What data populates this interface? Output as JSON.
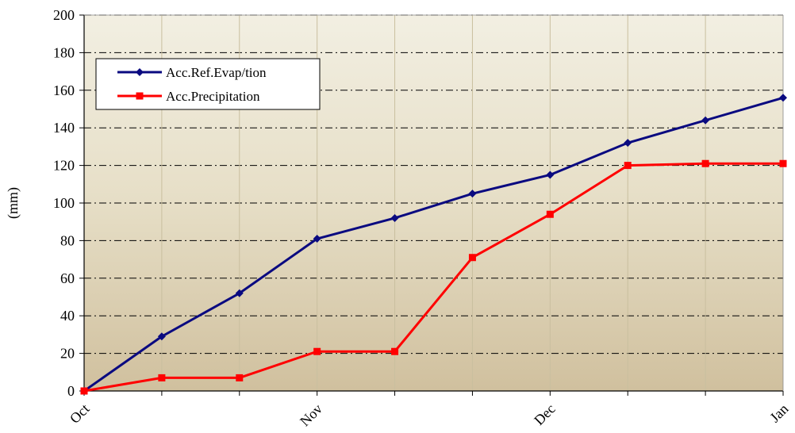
{
  "chart_data": {
    "type": "line",
    "xlabel": "",
    "ylabel": "(mm)",
    "ylim": [
      0,
      200
    ],
    "yticks": [
      0,
      20,
      40,
      60,
      80,
      100,
      120,
      140,
      160,
      180,
      200
    ],
    "x": [
      0,
      1,
      2,
      3,
      4,
      5,
      6,
      7,
      8,
      9
    ],
    "xlim": [
      0,
      9
    ],
    "xtick_labels": [
      {
        "x": 0,
        "label": "Oct"
      },
      {
        "x": 3,
        "label": "Nov"
      },
      {
        "x": 6,
        "label": "Dec"
      },
      {
        "x": 9,
        "label": "Jan"
      }
    ],
    "grid": true,
    "legend_position": "top-left",
    "series": [
      {
        "name": "Acc.Ref.Evap/tion",
        "color": "#0a0a80",
        "marker": "diamond",
        "values": [
          0,
          29,
          52,
          81,
          92,
          105,
          115,
          132,
          144,
          156
        ]
      },
      {
        "name": "Acc.Precipitation",
        "color": "#ff0000",
        "marker": "square",
        "values": [
          0,
          7,
          7,
          21,
          21,
          71,
          94,
          120,
          121,
          121
        ]
      }
    ]
  }
}
